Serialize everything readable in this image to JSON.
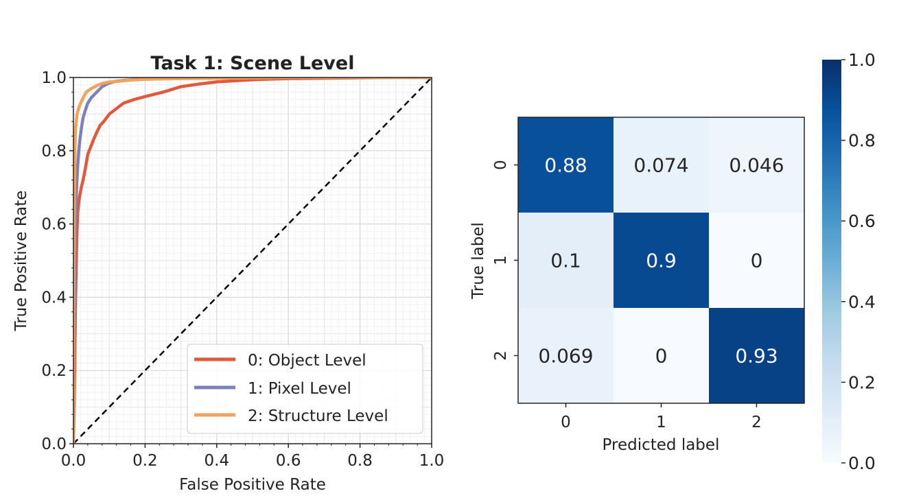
{
  "colors": {
    "object_level": "#e1583a",
    "pixel_level": "#7b81bd",
    "structure_level": "#f0a35f",
    "diagonal": "#000000",
    "cmap_low": "#f7fbff",
    "cmap_high": "#08306b"
  },
  "chart_data": [
    {
      "type": "line",
      "title": "Task 1: Scene Level",
      "xlabel": "False Positive Rate",
      "ylabel": "True Positive Rate",
      "xlim": [
        0.0,
        1.0
      ],
      "ylim": [
        0.0,
        1.0
      ],
      "xticks": [
        "0.0",
        "0.2",
        "0.4",
        "0.6",
        "0.8",
        "1.0"
      ],
      "yticks": [
        "0.0",
        "0.2",
        "0.4",
        "0.6",
        "0.8",
        "1.0"
      ],
      "grid": true,
      "legend_position": "lower-right",
      "series": [
        {
          "name": "0: Object Level",
          "color_key": "object_level",
          "x": [
            0,
            0.002,
            0.004,
            0.006,
            0.008,
            0.01,
            0.012,
            0.015,
            0.018,
            0.022,
            0.027,
            0.033,
            0.04,
            0.048,
            0.056,
            0.065,
            0.075,
            0.085,
            0.1,
            0.12,
            0.14,
            0.17,
            0.2,
            0.25,
            0.3,
            0.35,
            0.4,
            0.5,
            0.6,
            0.7,
            0.8,
            0.9,
            1.0
          ],
          "y": [
            0,
            0.1,
            0.25,
            0.4,
            0.5,
            0.58,
            0.63,
            0.66,
            0.68,
            0.7,
            0.72,
            0.75,
            0.79,
            0.81,
            0.83,
            0.85,
            0.87,
            0.88,
            0.9,
            0.915,
            0.93,
            0.94,
            0.948,
            0.96,
            0.975,
            0.982,
            0.988,
            0.994,
            0.997,
            0.998,
            0.999,
            1.0,
            1.0
          ]
        },
        {
          "name": "1: Pixel Level",
          "color_key": "pixel_level",
          "x": [
            0,
            0.002,
            0.004,
            0.006,
            0.008,
            0.01,
            0.012,
            0.015,
            0.018,
            0.022,
            0.027,
            0.033,
            0.04,
            0.05,
            0.06,
            0.07,
            0.08,
            0.1,
            0.12,
            0.15,
            0.2,
            0.25,
            0.3,
            0.4,
            0.5,
            0.6,
            0.8,
            1.0
          ],
          "y": [
            0,
            0.3,
            0.5,
            0.6,
            0.68,
            0.72,
            0.76,
            0.8,
            0.83,
            0.86,
            0.89,
            0.91,
            0.93,
            0.945,
            0.955,
            0.965,
            0.975,
            0.985,
            0.99,
            0.993,
            0.997,
            0.998,
            0.999,
            1.0,
            1.0,
            1.0,
            1.0,
            1.0
          ]
        },
        {
          "name": "2: Structure Level",
          "color_key": "structure_level",
          "x": [
            0,
            0.002,
            0.004,
            0.006,
            0.008,
            0.01,
            0.013,
            0.016,
            0.02,
            0.025,
            0.03,
            0.036,
            0.043,
            0.05,
            0.06,
            0.07,
            0.085,
            0.1,
            0.13,
            0.16,
            0.2,
            0.3,
            0.4,
            0.5,
            0.6,
            0.8,
            1.0
          ],
          "y": [
            0,
            0.6,
            0.8,
            0.86,
            0.88,
            0.9,
            0.91,
            0.92,
            0.93,
            0.94,
            0.95,
            0.96,
            0.965,
            0.97,
            0.975,
            0.98,
            0.985,
            0.988,
            0.99,
            0.993,
            0.995,
            0.997,
            0.998,
            0.999,
            1.0,
            1.0,
            1.0
          ]
        },
        {
          "name": "chance",
          "color_key": "diagonal",
          "dashed": true,
          "x": [
            0,
            1
          ],
          "y": [
            0,
            1
          ]
        }
      ]
    },
    {
      "type": "heatmap",
      "title": "",
      "xlabel": "Predicted label",
      "ylabel": "True label",
      "x_categories": [
        "0",
        "1",
        "2"
      ],
      "y_categories": [
        "0",
        "1",
        "2"
      ],
      "values": [
        [
          0.88,
          0.074,
          0.046
        ],
        [
          0.1,
          0.9,
          0
        ],
        [
          0.069,
          0,
          0.93
        ]
      ],
      "value_labels": [
        [
          "0.88",
          "0.074",
          "0.046"
        ],
        [
          "0.1",
          "0.9",
          "0"
        ],
        [
          "0.069",
          "0",
          "0.93"
        ]
      ],
      "colorbar": {
        "range": [
          0.0,
          1.0
        ],
        "ticks": [
          "0.0",
          "0.2",
          "0.4",
          "0.6",
          "0.8",
          "1.0"
        ],
        "colormap": "Blues"
      }
    }
  ]
}
